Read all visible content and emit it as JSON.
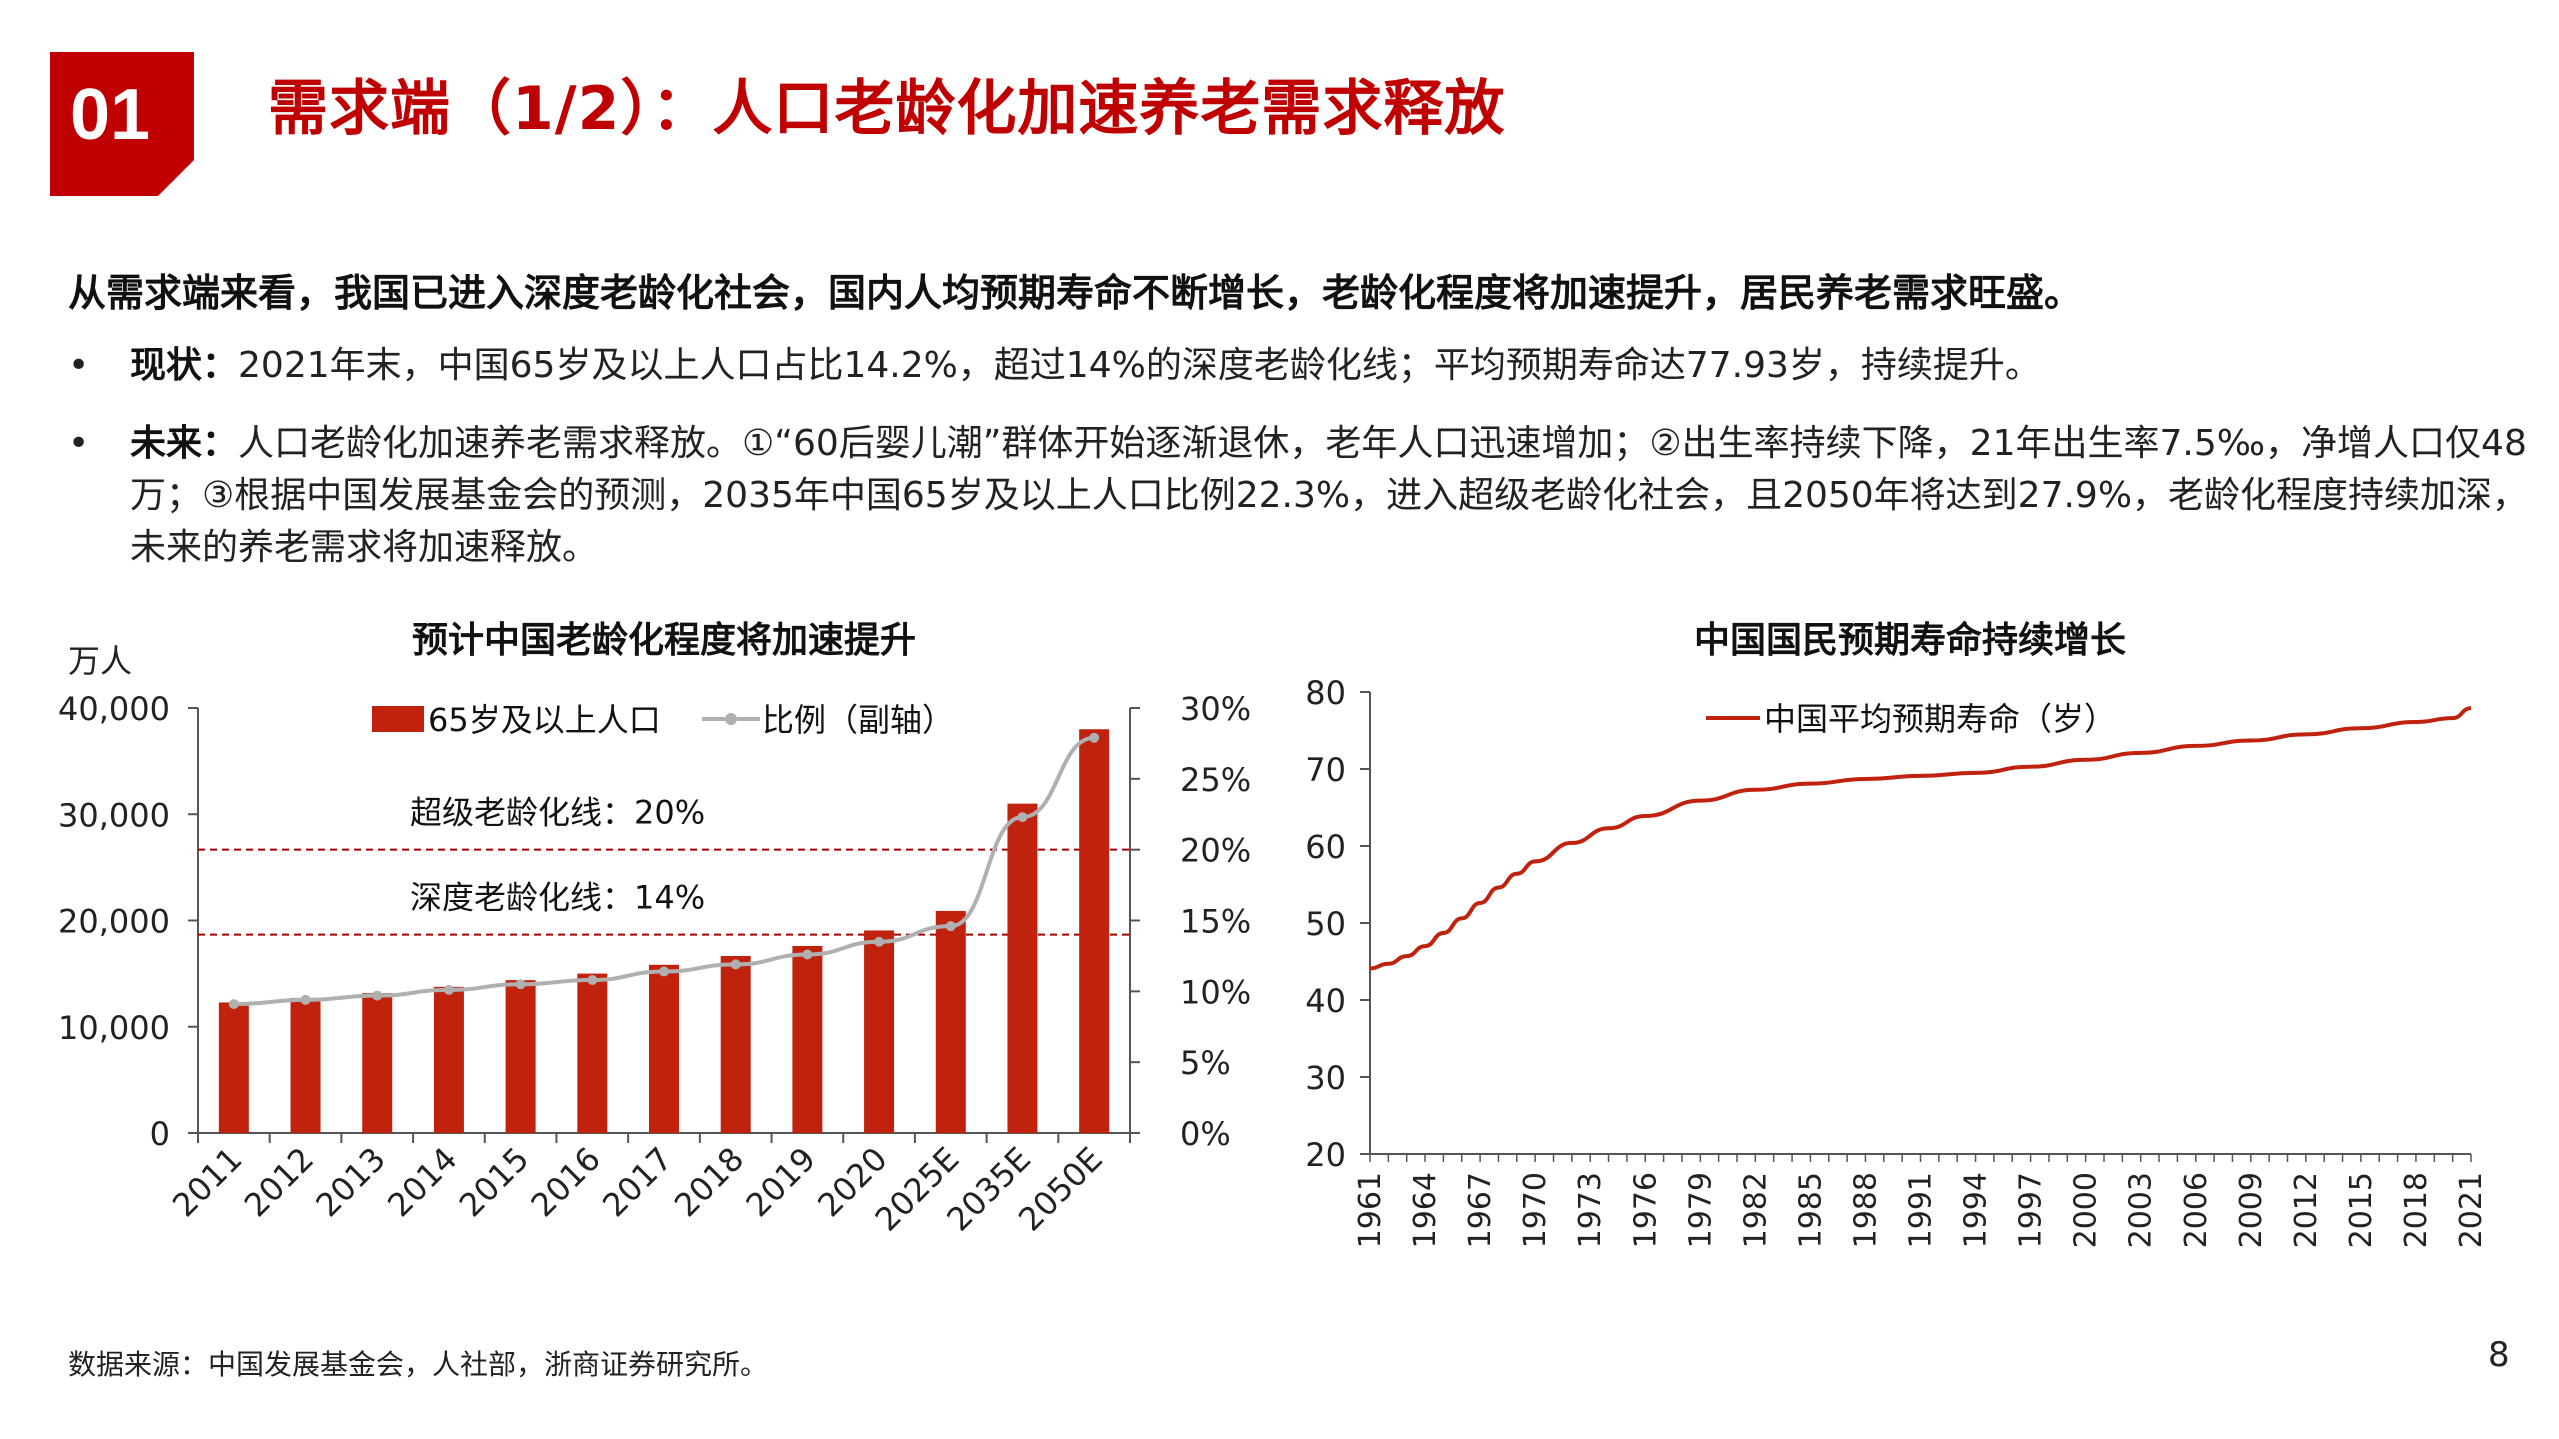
{
  "section_number": "01",
  "title": "需求端（1/2）：人口老龄化加速养老需求释放",
  "lead": "从需求端来看，我国已进入深度老龄化社会，国内人均预期寿命不断增长，老龄化程度将加速提升，居民养老需求旺盛。",
  "bullets": [
    {
      "label": "现状：",
      "text": "2021年末，中国65岁及以上人口占比14.2%，超过14%的深度老龄化线；平均预期寿命达77.93岁，持续提升。"
    },
    {
      "label": "未来：",
      "text": "人口老龄化加速养老需求释放。①“60后婴儿潮”群体开始逐渐退休，老年人口迅速增加；②出生率持续下降，21年出生率7.5‰，净增人口仅48万；③根据中国发展基金会的预测，2035年中国65岁及以上人口比例22.3%，进入超级老龄化社会，且2050年将达到27.9%，老龄化程度持续加深，未来的养老需求将加速释放。"
    }
  ],
  "source": "数据来源：中国发展基金会，人社部，浙商证券研究所。",
  "page_number": "8",
  "colors": {
    "accent": "#c00000",
    "bar": "#c0220e",
    "line_gray": "#b0b0b0",
    "life_line": "#c0220e"
  },
  "chart_data": [
    {
      "type": "bar",
      "title": "预计中国老龄化程度将加速提升",
      "ylabel": "万人",
      "categories": [
        "2011",
        "2012",
        "2013",
        "2014",
        "2015",
        "2016",
        "2017",
        "2018",
        "2019",
        "2020",
        "2025E",
        "2035E",
        "2050E"
      ],
      "ylim": [
        0,
        40000
      ],
      "yticks": [
        "0",
        "10,000",
        "20,000",
        "30,000",
        "40,000"
      ],
      "y2lim": [
        0,
        30
      ],
      "y2ticks": [
        "0%",
        "5%",
        "10%",
        "15%",
        "20%",
        "25%",
        "30%"
      ],
      "series": [
        {
          "name": "65岁及以上人口",
          "kind": "bar",
          "values": [
            12288,
            12714,
            13161,
            13755,
            14386,
            15003,
            15831,
            16658,
            17603,
            19064,
            20900,
            31000,
            38000
          ]
        },
        {
          "name": "比例（副轴）",
          "kind": "line",
          "axis": "secondary",
          "values": [
            9.1,
            9.4,
            9.7,
            10.1,
            10.5,
            10.8,
            11.4,
            11.9,
            12.6,
            13.5,
            14.6,
            22.3,
            27.9
          ]
        }
      ],
      "reference_lines": [
        {
          "label": "超级老龄化线：20%",
          "value": 20
        },
        {
          "label": "深度老龄化线：14%",
          "value": 14
        }
      ],
      "legend_placement": "top"
    },
    {
      "type": "line",
      "title": "中国国民预期寿命持续增长",
      "ylim": [
        20,
        80
      ],
      "yticks": [
        "20",
        "30",
        "40",
        "50",
        "60",
        "70",
        "80"
      ],
      "xlim": [
        1961,
        2021
      ],
      "xticks": [
        "1961",
        "1964",
        "1967",
        "1970",
        "1973",
        "1976",
        "1979",
        "1982",
        "1985",
        "1988",
        "1991",
        "1994",
        "1997",
        "2000",
        "2003",
        "2006",
        "2009",
        "2012",
        "2015",
        "2018",
        "2021"
      ],
      "series": [
        {
          "name": "中国平均预期寿命（岁）",
          "x": [
            1961,
            1962,
            1963,
            1964,
            1965,
            1966,
            1967,
            1968,
            1969,
            1970,
            1972,
            1974,
            1976,
            1979,
            1982,
            1985,
            1988,
            1991,
            1994,
            1997,
            2000,
            2003,
            2006,
            2009,
            2012,
            2015,
            2018,
            2020,
            2021
          ],
          "y": [
            44.1,
            44.7,
            45.7,
            47.0,
            48.7,
            50.6,
            52.6,
            54.6,
            56.4,
            58.0,
            60.4,
            62.3,
            63.9,
            65.9,
            67.3,
            68.1,
            68.7,
            69.1,
            69.5,
            70.3,
            71.2,
            72.1,
            73.0,
            73.7,
            74.5,
            75.3,
            76.1,
            76.6,
            77.9
          ]
        }
      ],
      "legend_placement": "top"
    }
  ]
}
